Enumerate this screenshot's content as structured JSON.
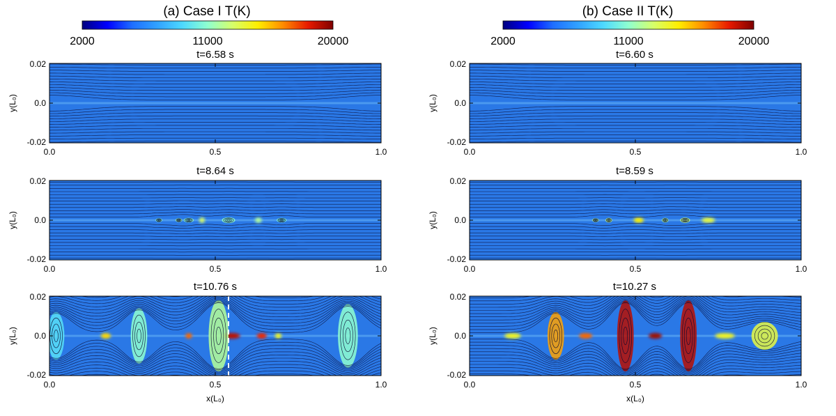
{
  "colors": {
    "colormap": [
      "#00007f",
      "#0000ff",
      "#1e6fff",
      "#31a2ff",
      "#4dd9ff",
      "#8fffd0",
      "#d6ff6a",
      "#ffee00",
      "#ff8c00",
      "#e81a00",
      "#7f0000"
    ],
    "background_field": "#2a78e6",
    "line": "#0a0a30",
    "cut_line": "#ffffff"
  },
  "chart_data": [
    {
      "type": "heatmap",
      "colorbar": {
        "title": "(a) Case I T(K)",
        "ticks": [
          "2000",
          "11000",
          "20000"
        ],
        "min": 2000,
        "max": 20000
      },
      "xlabel": "x(L₀)",
      "ylabel": "y(L₀)",
      "xlim": [
        0,
        1
      ],
      "ylim": [
        -0.02,
        0.02
      ],
      "xticks": [
        "0.0",
        "0.5",
        "1.0"
      ],
      "yticks": [
        "0.02",
        "0.0",
        "-0.02"
      ],
      "panels": [
        {
          "title": "t=6.58 s",
          "time_s": 6.58,
          "islands": [],
          "hot_spots": []
        },
        {
          "title": "t=8.64 s",
          "time_s": 8.64,
          "islands": [
            {
              "x": 0.33,
              "w": 0.02,
              "h": 0.001,
              "t": 11000
            },
            {
              "x": 0.39,
              "w": 0.02,
              "h": 0.001,
              "t": 11500
            },
            {
              "x": 0.42,
              "w": 0.03,
              "h": 0.0012,
              "t": 11000
            },
            {
              "x": 0.54,
              "w": 0.04,
              "h": 0.0015,
              "t": 11000
            },
            {
              "x": 0.7,
              "w": 0.03,
              "h": 0.0012,
              "t": 10500
            }
          ],
          "hot_spots": [
            {
              "x": 0.46,
              "w": 0.015,
              "t": 13000
            },
            {
              "x": 0.63,
              "w": 0.02,
              "t": 12000
            }
          ]
        },
        {
          "title": "t=10.76 s",
          "time_s": 10.76,
          "islands": [
            {
              "x": 0.02,
              "w": 0.05,
              "h": 0.012,
              "t": 9500
            },
            {
              "x": 0.27,
              "w": 0.05,
              "h": 0.014,
              "t": 11000
            },
            {
              "x": 0.51,
              "w": 0.06,
              "h": 0.018,
              "t": 12000
            },
            {
              "x": 0.9,
              "w": 0.06,
              "h": 0.016,
              "t": 11000
            }
          ],
          "hot_spots": [
            {
              "x": 0.17,
              "w": 0.03,
              "t": 15000
            },
            {
              "x": 0.42,
              "w": 0.02,
              "t": 17000
            },
            {
              "x": 0.55,
              "w": 0.05,
              "t": 19000
            },
            {
              "x": 0.64,
              "w": 0.03,
              "t": 18000
            },
            {
              "x": 0.69,
              "w": 0.02,
              "t": 14000
            }
          ],
          "cut_x": 0.54
        }
      ]
    },
    {
      "type": "heatmap",
      "colorbar": {
        "title": "(b) Case II T(K)",
        "ticks": [
          "2000",
          "11000",
          "20000"
        ],
        "min": 2000,
        "max": 20000
      },
      "xlabel": "x(L₀)",
      "ylabel": "y(L₀)",
      "xlim": [
        0,
        1
      ],
      "ylim": [
        -0.02,
        0.02
      ],
      "xticks": [
        "0.0",
        "0.5",
        "1.0"
      ],
      "yticks": [
        "0.02",
        "0.0",
        "-0.02"
      ],
      "panels": [
        {
          "title": "t=6.60 s",
          "time_s": 6.6,
          "islands": [],
          "hot_spots": []
        },
        {
          "title": "t=8.59 s",
          "time_s": 8.59,
          "islands": [
            {
              "x": 0.38,
              "w": 0.02,
              "h": 0.001,
              "t": 12000
            },
            {
              "x": 0.42,
              "w": 0.02,
              "h": 0.0012,
              "t": 12500
            },
            {
              "x": 0.59,
              "w": 0.02,
              "h": 0.0012,
              "t": 12000
            },
            {
              "x": 0.65,
              "w": 0.03,
              "h": 0.0013,
              "t": 12500
            }
          ],
          "hot_spots": [
            {
              "x": 0.51,
              "w": 0.03,
              "t": 14500
            },
            {
              "x": 0.72,
              "w": 0.04,
              "t": 13500
            }
          ]
        },
        {
          "title": "t=10.27 s",
          "time_s": 10.27,
          "islands": [
            {
              "x": 0.26,
              "w": 0.05,
              "h": 0.012,
              "t": 16000
            },
            {
              "x": 0.47,
              "w": 0.05,
              "h": 0.018,
              "t": 19000
            },
            {
              "x": 0.66,
              "w": 0.05,
              "h": 0.018,
              "t": 19000
            },
            {
              "x": 0.89,
              "w": 0.08,
              "h": 0.007,
              "t": 13500
            }
          ],
          "hot_spots": [
            {
              "x": 0.13,
              "w": 0.05,
              "t": 14000
            },
            {
              "x": 0.35,
              "w": 0.04,
              "t": 17000
            },
            {
              "x": 0.56,
              "w": 0.04,
              "t": 19500
            },
            {
              "x": 0.77,
              "w": 0.06,
              "t": 14000
            }
          ]
        }
      ]
    }
  ]
}
